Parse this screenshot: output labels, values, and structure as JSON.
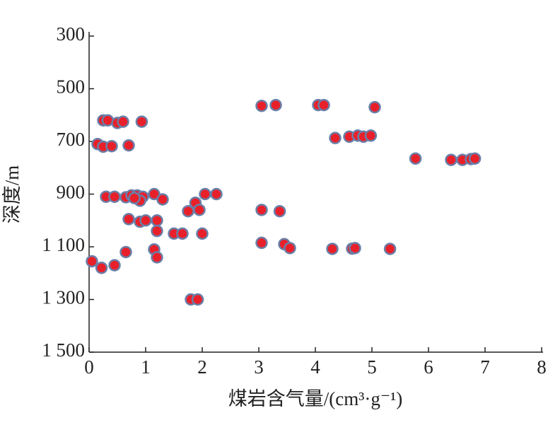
{
  "chart_data": {
    "type": "scatter",
    "xlabel": "煤岩含气量/(cm³·g⁻¹)",
    "ylabel": "深度/m",
    "x": [
      0.25,
      0.33,
      0.5,
      0.6,
      0.93,
      0.15,
      0.25,
      0.4,
      0.7,
      0.3,
      0.45,
      0.65,
      0.75,
      0.85,
      0.95,
      0.9,
      1.15,
      1.3,
      0.8,
      1.88,
      2.05,
      2.25,
      1.75,
      1.95,
      0.7,
      0.9,
      1.0,
      1.2,
      1.2,
      1.5,
      1.65,
      2.0,
      0.65,
      1.15,
      1.2,
      0.05,
      0.22,
      0.45,
      1.8,
      1.92,
      3.05,
      3.3,
      4.05,
      4.15,
      5.05,
      4.35,
      4.6,
      4.75,
      4.85,
      4.98,
      5.77,
      6.4,
      6.6,
      6.75,
      6.82,
      3.05,
      3.37,
      3.05,
      3.45,
      3.55,
      4.3,
      4.65,
      4.7,
      5.32
    ],
    "values": [
      620,
      620,
      630,
      625,
      625,
      710,
      720,
      718,
      715,
      910,
      910,
      912,
      905,
      905,
      910,
      925,
      900,
      920,
      915,
      933,
      900,
      900,
      965,
      960,
      995,
      1005,
      1000,
      1000,
      1040,
      1050,
      1050,
      1050,
      1120,
      1110,
      1140,
      1155,
      1180,
      1170,
      1300,
      1300,
      565,
      562,
      562,
      562,
      570,
      687,
      682,
      678,
      682,
      678,
      765,
      770,
      770,
      767,
      765,
      960,
      965,
      1085,
      1090,
      1105,
      1108,
      1107,
      1105,
      1108
    ],
    "color": "#e8202a",
    "edgecolor": "#6a7fa8",
    "xlim": [
      0,
      8
    ],
    "xticks": [
      0,
      1,
      2,
      3,
      4,
      5,
      6,
      7,
      8
    ],
    "ylim": [
      300,
      1500
    ],
    "y_inverted": true,
    "yticks": [
      300,
      500,
      700,
      900,
      {
        "value": 1100,
        "label": "1 100"
      },
      {
        "value": 1300,
        "label": "1 300"
      },
      {
        "value": 1500,
        "label": "1 500"
      }
    ]
  }
}
